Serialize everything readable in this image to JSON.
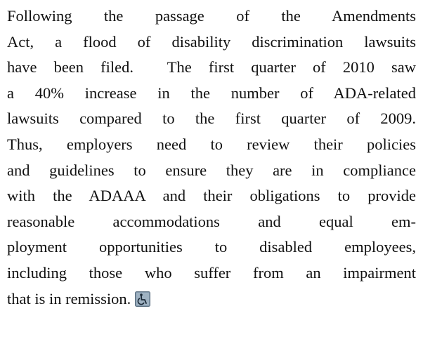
{
  "paragraph": {
    "lines": [
      "Following the passage of the Amendments",
      "Act, a flood of disability discrimination lawsuits",
      "have been filed.  The first quarter of 2010 saw",
      "a 40% increase in the number of ADA-related",
      "lawsuits compared to the first quarter of 2009.",
      "Thus, employers need to review their policies",
      "and guidelines to ensure they are in compliance",
      "with the ADAAA and their obligations to provide",
      "reasonable accommodations and equal em-",
      "ployment opportunities to disabled employees,",
      "including those who suffer from an impairment",
      "that is in remission."
    ]
  }
}
